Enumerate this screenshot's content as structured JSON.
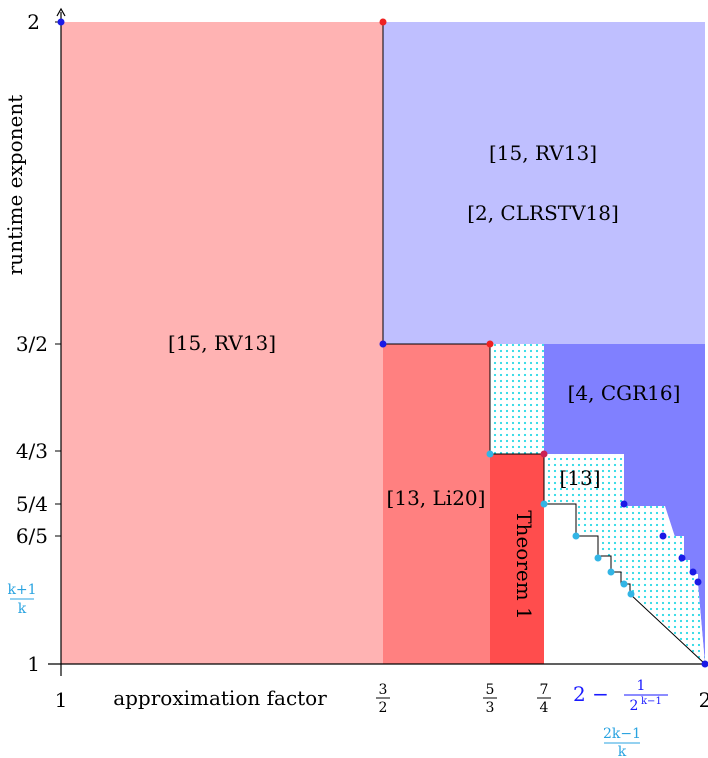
{
  "axes": {
    "xlabel": "approximation factor",
    "ylabel": "runtime exponent",
    "x_ticks": [
      {
        "label": "1",
        "value": 1
      },
      {
        "num": "3",
        "den": "2",
        "value": 1.5
      },
      {
        "num": "5",
        "den": "3",
        "value": 1.6667
      },
      {
        "num": "7",
        "den": "4",
        "value": 1.75
      },
      {
        "label": "2",
        "value": 2
      }
    ],
    "x_formula": {
      "prefix": "2 − ",
      "num": "1",
      "den": "2",
      "den_exp": "k−1",
      "color": "#1a1aff"
    },
    "x_formula_cyan": {
      "num": "2k−1",
      "den": "k",
      "color": "#29a3e0"
    },
    "y_ticks": [
      {
        "label": "2",
        "value": 2
      },
      {
        "label": "3/2",
        "value": 1.5
      },
      {
        "label": "4/3",
        "value": 1.3333
      },
      {
        "label": "5/4",
        "value": 1.25
      },
      {
        "label": "6/5",
        "value": 1.2
      },
      {
        "label": "1",
        "value": 1
      }
    ],
    "y_formula_cyan": {
      "num": "k+1",
      "den": "k",
      "color": "#29a3e0"
    }
  },
  "regions": {
    "pink_label": "[15, RV13]",
    "blue_top_label_1": "[15, RV13]",
    "blue_top_label_2": "[2, CLRSTV18]",
    "blue_mid_label": "[4, CGR16]",
    "red_mid_label": "[13, Li20]",
    "theorem_label": "Theorem 1",
    "dotted_label": "[13]"
  },
  "colors": {
    "pink": "#ffb3b3",
    "light_blue": "#bfbfff",
    "mid_blue": "#8080ff",
    "mid_red": "#ff8080",
    "red": "#ff4d4d",
    "cyan_dots": "#29d9e6",
    "point_blue": "#1a1ae6",
    "point_red": "#ee2222",
    "point_cyan": "#33b5e5"
  }
}
